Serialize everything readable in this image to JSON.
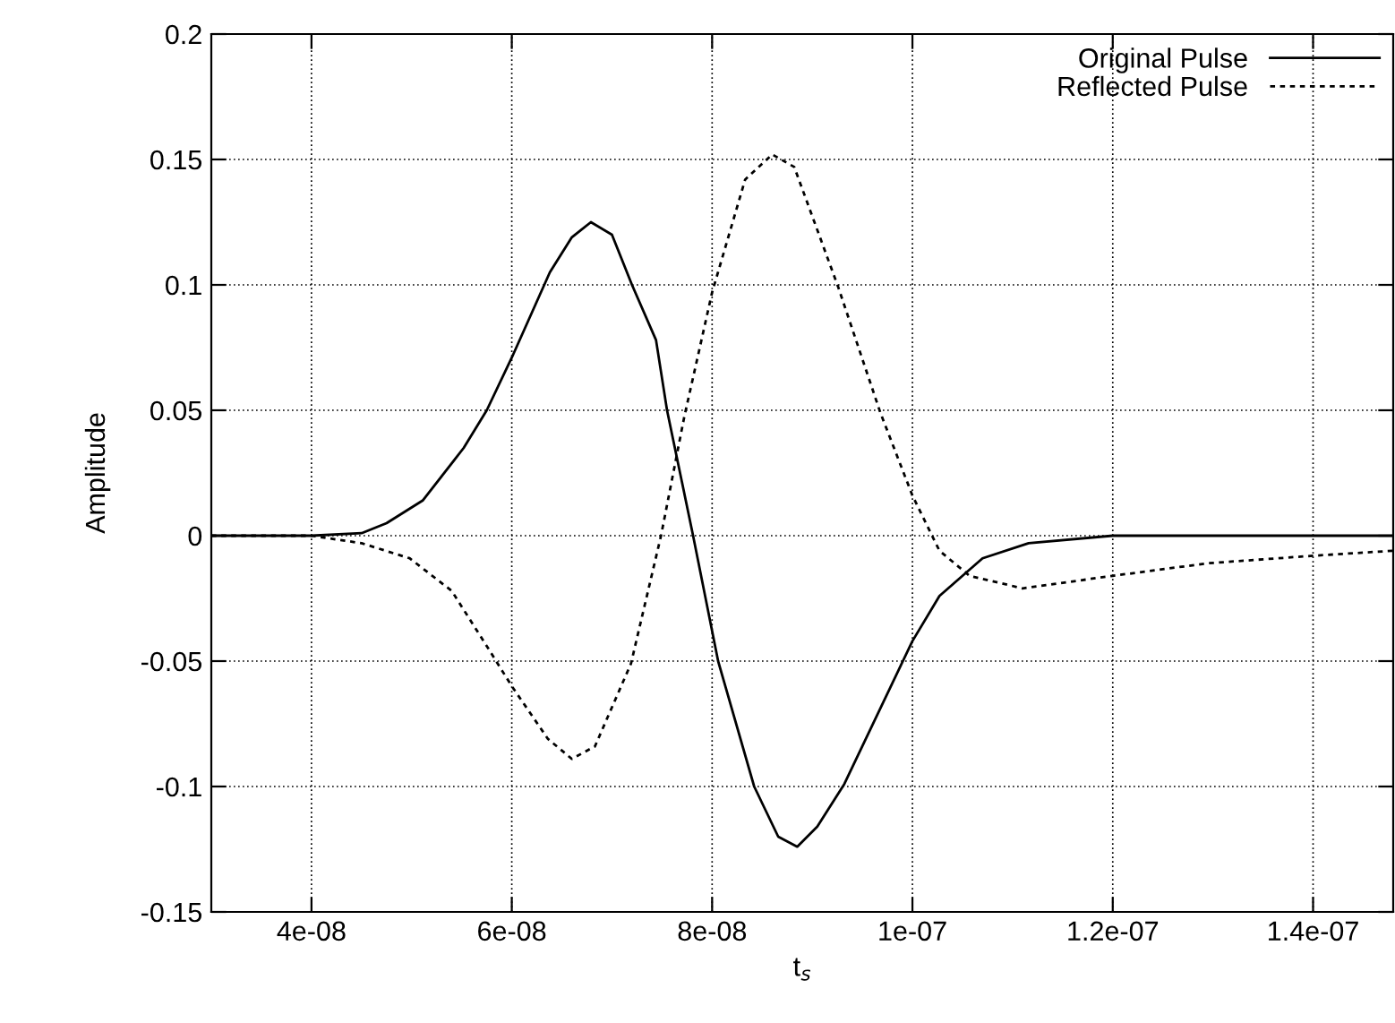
{
  "chart_data": {
    "type": "line",
    "xlabel": "t$_{s}$",
    "ylabel": "Amplitude",
    "xlim": [
      3e-08,
      1.48e-07
    ],
    "xticks": [
      4e-08,
      6e-08,
      8e-08,
      1e-07,
      1.2e-07,
      1.4e-07
    ],
    "ylim": [
      -0.15,
      0.2
    ],
    "yticks": [
      -0.15,
      -0.1,
      -0.05,
      0,
      0.05,
      0.1,
      0.15,
      0.2
    ],
    "grid": true,
    "legend": "top right",
    "series": [
      {
        "name": "Original Pulse",
        "color": "#000000",
        "line_style": "solid",
        "x": [
          3e-08,
          4e-08,
          4.5e-08,
          4.75e-08,
          5.11e-08,
          5.52e-08,
          5.75e-08,
          6e-08,
          6.38e-08,
          6.6e-08,
          6.79e-08,
          7e-08,
          7.2e-08,
          7.44e-08,
          7.55e-08,
          7.81e-08,
          8.06e-08,
          8.42e-08,
          8.66e-08,
          8.85e-08,
          9.05e-08,
          9.32e-08,
          1e-07,
          1.027e-07,
          1.07e-07,
          1.116e-07,
          1.2e-07,
          1.48e-07
        ],
        "values": [
          0,
          0,
          0.001,
          0.005,
          0.014,
          0.035,
          0.05,
          0.071,
          0.105,
          0.119,
          0.125,
          0.12,
          0.1,
          0.078,
          0.05,
          0,
          -0.05,
          -0.1,
          -0.12,
          -0.124,
          -0.116,
          -0.099,
          -0.042,
          -0.024,
          -0.009,
          -0.003,
          0,
          0
        ]
      },
      {
        "name": "Reflected Pulse",
        "color": "#000000",
        "line_style": "dotted",
        "x": [
          3e-08,
          4e-08,
          4.5e-08,
          4.98e-08,
          5.4e-08,
          5.75e-08,
          6e-08,
          6.36e-08,
          6.6e-08,
          6.83e-08,
          7.19e-08,
          7.49e-08,
          7.72e-08,
          8e-08,
          8.33e-08,
          8.6e-08,
          8.82e-08,
          9.26e-08,
          9.68e-08,
          1e-07,
          1.027e-07,
          1.057e-07,
          1.11e-07,
          1.2e-07,
          1.295e-07,
          1.4e-07,
          1.48e-07
        ],
        "values": [
          0,
          0,
          -0.003,
          -0.009,
          -0.022,
          -0.044,
          -0.06,
          -0.081,
          -0.089,
          -0.084,
          -0.051,
          0,
          0.047,
          0.097,
          0.142,
          0.152,
          0.147,
          0.099,
          0.049,
          0.016,
          -0.006,
          -0.016,
          -0.021,
          -0.016,
          -0.011,
          -0.008,
          -0.006
        ]
      }
    ]
  }
}
